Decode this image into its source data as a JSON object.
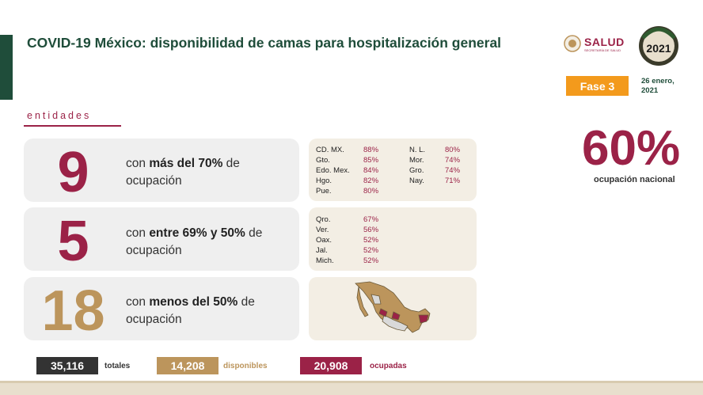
{
  "header": {
    "title": "COVID-19 México: disponibilidad de camas para hospitalización general",
    "salud_logo_text": "SALUD",
    "salud_logo_sub": "SECRETARÍA DE SALUD",
    "seal_year": "2021",
    "phase_label": "Fase 3",
    "date_line1": "26 enero,",
    "date_line2": "2021"
  },
  "section_label": "entidades",
  "groups": [
    {
      "count": "9",
      "count_color": "#9b2247",
      "desc_pre": "con ",
      "desc_bold": "más del 70%",
      "desc_post": " de",
      "desc_line2": "ocupación"
    },
    {
      "count": "5",
      "count_color": "#9b2247",
      "desc_pre": "con ",
      "desc_bold": "entre 69% y 50%",
      "desc_post": " de",
      "desc_line2": "ocupación"
    },
    {
      "count": "18",
      "count_color": "#bc955c",
      "desc_pre": "con ",
      "desc_bold": "menos del 50%",
      "desc_post": " de",
      "desc_line2": "ocupación"
    }
  ],
  "high_occupancy": {
    "col1": [
      {
        "state": "CD. MX.",
        "value": "88%"
      },
      {
        "state": "Gto.",
        "value": "85%"
      },
      {
        "state": "Edo. Mex.",
        "value": "84%"
      },
      {
        "state": "Hgo.",
        "value": "82%"
      },
      {
        "state": "Pue.",
        "value": "80%"
      }
    ],
    "col2": [
      {
        "state": "N. L.",
        "value": "80%"
      },
      {
        "state": "Mor.",
        "value": "74%"
      },
      {
        "state": "Gro.",
        "value": "74%"
      },
      {
        "state": "Nay.",
        "value": "71%"
      }
    ]
  },
  "mid_occupancy": [
    {
      "state": "Qro.",
      "value": "67%"
    },
    {
      "state": "Ver.",
      "value": "56%"
    },
    {
      "state": "Oax.",
      "value": "52%"
    },
    {
      "state": "Jal.",
      "value": "52%"
    },
    {
      "state": "Mich.",
      "value": "52%"
    }
  ],
  "national": {
    "value": "60%",
    "label": "ocupación nacional"
  },
  "totals": [
    {
      "value": "35,116",
      "label": "totales",
      "color": "#333333",
      "label_color": "#333333"
    },
    {
      "value": "14,208",
      "label": "disponibles",
      "color": "#bc955c",
      "label_color": "#bc955c"
    },
    {
      "value": "20,908",
      "label": "ocupadas",
      "color": "#9b2247",
      "label_color": "#9b2247"
    }
  ],
  "colors": {
    "green": "#1f4d3a",
    "guinda": "#9b2247",
    "gold": "#bc955c",
    "orange": "#f39a1c"
  }
}
